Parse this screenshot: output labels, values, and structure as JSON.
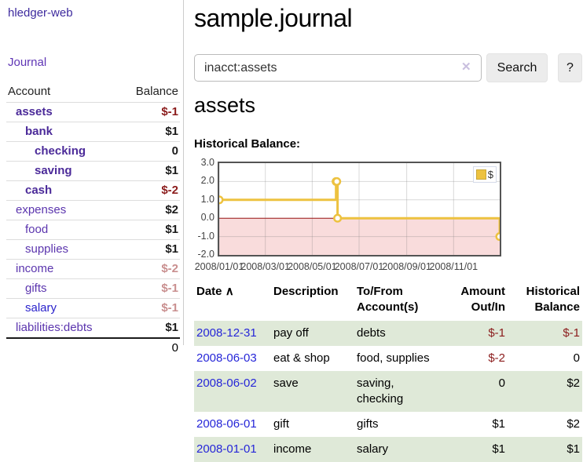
{
  "app": {
    "brand": "hledger-web",
    "nav": {
      "journal": "Journal"
    }
  },
  "colors": {
    "brand_purple": "#3d2a9e",
    "link_purple": "#5b35ae",
    "link_blue": "#2a22cc",
    "negative_red": "#8b1c1c",
    "negative_pink": "#c98f8f",
    "table_stripe_green": "#dfe9d8",
    "chart_line_gold": "#edc240",
    "chart_negative_fill": "#f9dcdc",
    "chart_zero_line": "#9d1a1a"
  },
  "sidebar": {
    "header": {
      "account": "Account",
      "balance": "Balance"
    },
    "accounts": [
      {
        "name": "assets",
        "balance": "$-1"
      },
      {
        "name": "bank",
        "balance": "$1"
      },
      {
        "name": "checking",
        "balance": "0"
      },
      {
        "name": "saving",
        "balance": "$1"
      },
      {
        "name": "cash",
        "balance": "$-2"
      },
      {
        "name": "expenses",
        "balance": "$2"
      },
      {
        "name": "food",
        "balance": "$1"
      },
      {
        "name": "supplies",
        "balance": "$1"
      },
      {
        "name": "income",
        "balance": "$-2"
      },
      {
        "name": "gifts",
        "balance": "$-1"
      },
      {
        "name": "salary",
        "balance": "$-1"
      },
      {
        "name": "liabilities:debts",
        "balance": "$1"
      }
    ],
    "total": "0"
  },
  "main": {
    "title": "sample.journal",
    "search": {
      "value": "inacct:assets",
      "clear_icon": "✕",
      "search_button": "Search",
      "help_button": "?"
    },
    "account_heading": "assets",
    "chart_heading": "Historical Balance:"
  },
  "chart_data": {
    "type": "line",
    "steps": true,
    "title": "Historical Balance:",
    "legend_position": "top-right",
    "grid": true,
    "ylim": [
      -2,
      3
    ],
    "xlim_days": [
      0,
      365
    ],
    "series": [
      {
        "name": "$",
        "color": "#edc240",
        "points": [
          {
            "x": "2008-01-01",
            "day": 0,
            "y": 1
          },
          {
            "x": "2008-06-01",
            "day": 152,
            "y": 2
          },
          {
            "x": "2008-06-02",
            "day": 153,
            "y": 2
          },
          {
            "x": "2008-06-03",
            "day": 154,
            "y": 0
          },
          {
            "x": "2008-12-31",
            "day": 365,
            "y": -1
          }
        ]
      }
    ],
    "x_ticks": [
      {
        "label": "2008/01/01",
        "day": 0
      },
      {
        "label": "2008/03/01",
        "day": 60
      },
      {
        "label": "2008/05/01",
        "day": 121
      },
      {
        "label": "2008/07/01",
        "day": 182
      },
      {
        "label": "2008/09/01",
        "day": 244
      },
      {
        "label": "2008/11/01",
        "day": 305
      }
    ],
    "y_ticks": [
      {
        "label": "3.0",
        "value": 3
      },
      {
        "label": "2.0",
        "value": 2
      },
      {
        "label": "1.0",
        "value": 1
      },
      {
        "label": "0.0",
        "value": 0
      },
      {
        "label": "-1.0",
        "value": -1
      },
      {
        "label": "-2.0",
        "value": -2
      }
    ],
    "negative_region_fill": "#f9dcdc",
    "zero_line_color": "#9d1a1a"
  },
  "register": {
    "headers": {
      "date": "Date",
      "sort_asc_icon": "∧",
      "description": "Description",
      "account": "To/From Account(s)",
      "amount": "Amount Out/In",
      "balance": "Historical Balance"
    },
    "rows": [
      {
        "date": "2008-12-31",
        "description": "pay off",
        "account": "debts",
        "amount": "$-1",
        "balance": "$-1"
      },
      {
        "date": "2008-06-03",
        "description": "eat & shop",
        "account": "food, supplies",
        "amount": "$-2",
        "balance": "0"
      },
      {
        "date": "2008-06-02",
        "description": "save",
        "account": "saving, checking",
        "amount": "0",
        "balance": "$2"
      },
      {
        "date": "2008-06-01",
        "description": "gift",
        "account": "gifts",
        "amount": "$1",
        "balance": "$2"
      },
      {
        "date": "2008-01-01",
        "description": "income",
        "account": "salary",
        "amount": "$1",
        "balance": "$1"
      }
    ]
  }
}
